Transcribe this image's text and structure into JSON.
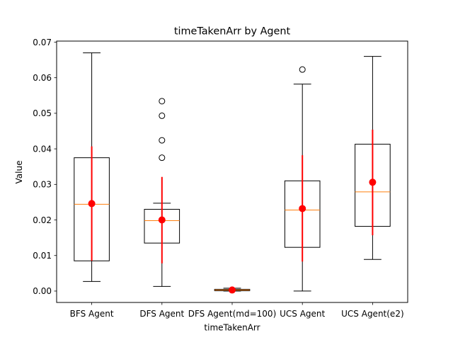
{
  "chart_data": {
    "type": "box",
    "title": "timeTakenArr by Agent",
    "xlabel": "timeTakenArr",
    "ylabel": "Value",
    "ylim": [
      -0.0032,
      0.0703
    ],
    "yticks": [
      0.0,
      0.01,
      0.02,
      0.03,
      0.04,
      0.05,
      0.06,
      0.07
    ],
    "ytick_labels": [
      "0.00",
      "0.01",
      "0.02",
      "0.03",
      "0.04",
      "0.05",
      "0.06",
      "0.07"
    ],
    "categories": [
      "BFS Agent",
      "DFS Agent",
      "DFS Agent(md=100)",
      "UCS Agent",
      "UCS Agent(e2)"
    ],
    "boxes": [
      {
        "whisker_low": 0.0027,
        "q1": 0.0085,
        "median": 0.0244,
        "q3": 0.0375,
        "whisker_high": 0.067,
        "outliers": [],
        "mean": 0.0246,
        "std_low": 0.0085,
        "std_high": 0.0407
      },
      {
        "whisker_low": 0.0013,
        "q1": 0.0135,
        "median": 0.0198,
        "q3": 0.023,
        "whisker_high": 0.0247,
        "outliers": [
          0.0375,
          0.0424,
          0.0493,
          0.0534
        ],
        "mean": 0.02,
        "std_low": 0.0078,
        "std_high": 0.0321
      },
      {
        "whisker_low": 0.0,
        "q1": 0.0001,
        "median": 0.0003,
        "q3": 0.0005,
        "whisker_high": 0.0008,
        "outliers": [],
        "mean": 0.0003,
        "std_low": 0.0,
        "std_high": 0.0006
      },
      {
        "whisker_low": 0.0,
        "q1": 0.0123,
        "median": 0.0228,
        "q3": 0.031,
        "whisker_high": 0.0582,
        "outliers": [
          0.0623
        ],
        "mean": 0.0232,
        "std_low": 0.0083,
        "std_high": 0.0382
      },
      {
        "whisker_low": 0.0089,
        "q1": 0.0182,
        "median": 0.0279,
        "q3": 0.0413,
        "whisker_high": 0.066,
        "outliers": [],
        "mean": 0.0306,
        "std_low": 0.0157,
        "std_high": 0.0454
      }
    ],
    "colors": {
      "box": "#000000",
      "median": "#ff7f0e",
      "mean": "#ff0000",
      "errorbar": "#ff0000"
    },
    "grid": false,
    "legend": "none"
  }
}
